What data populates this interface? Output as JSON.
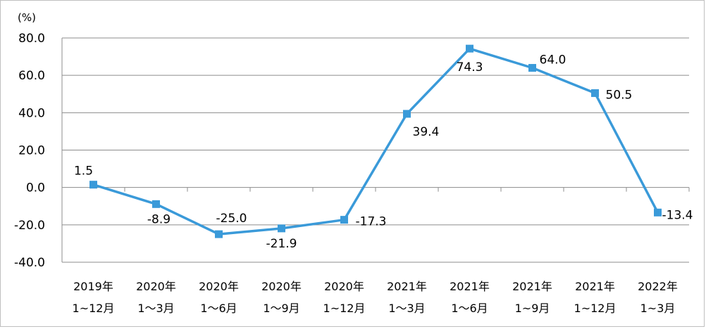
{
  "chart_data": {
    "type": "line",
    "unit_label": "(%)",
    "categories": [
      [
        "2019年",
        "1~12月"
      ],
      [
        "2020年",
        "1～3月"
      ],
      [
        "2020年",
        "1～6月"
      ],
      [
        "2020年",
        "1～9月"
      ],
      [
        "2020年",
        "1~12月"
      ],
      [
        "2021年",
        "1～3月"
      ],
      [
        "2021年",
        "1～6月"
      ],
      [
        "2021年",
        "1~9月"
      ],
      [
        "2021年",
        "1~12月"
      ],
      [
        "2022年",
        "1~3月"
      ]
    ],
    "series": [
      {
        "values": [
          1.5,
          -8.9,
          -25.0,
          -21.9,
          -17.3,
          39.4,
          74.3,
          64.0,
          50.5,
          -13.4
        ],
        "labels": [
          "1.5",
          "-8.9",
          "-25.0",
          "-21.9",
          "-17.3",
          "39.4",
          "74.3",
          "64.0",
          "50.5",
          "-13.4"
        ],
        "color": "#3a9ad9"
      }
    ],
    "ylim": [
      -40,
      80
    ],
    "yticks": [
      -40,
      -20,
      0,
      20,
      40,
      60,
      80
    ],
    "ytick_labels": [
      "-40.0",
      "-20.0",
      "0.0",
      "20.0",
      "40.0",
      "60.0",
      "80.0"
    ],
    "grid": true,
    "legend": "none"
  }
}
